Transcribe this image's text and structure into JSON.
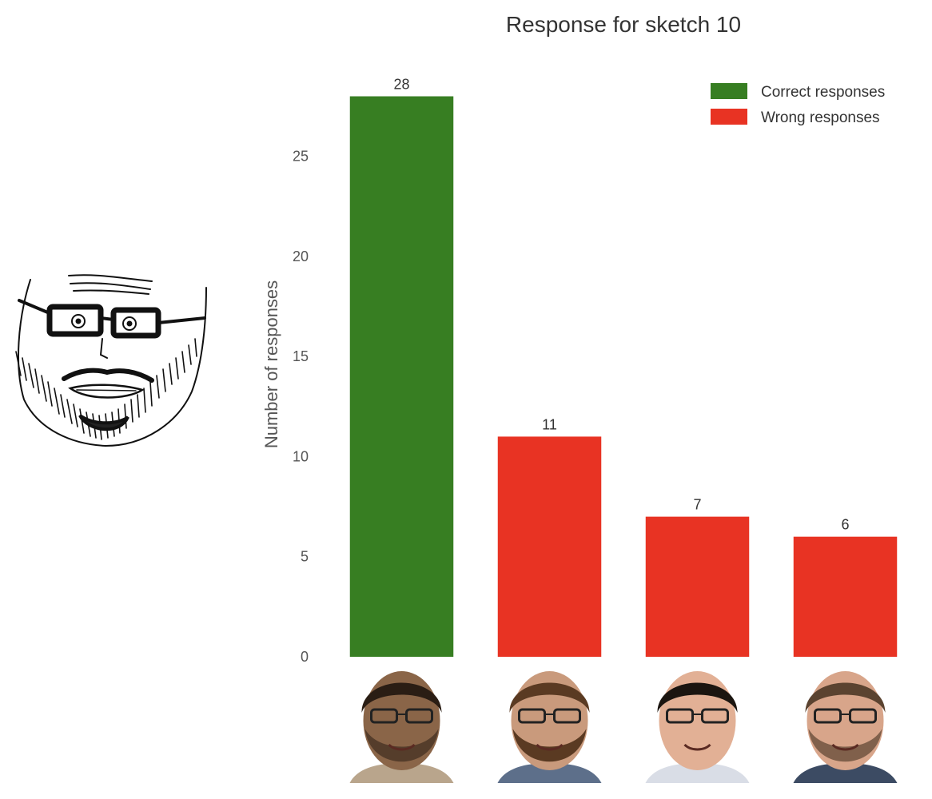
{
  "chart_data": {
    "type": "bar",
    "title": "Response for sketch 10",
    "xlabel": "",
    "ylabel": "Number of responses",
    "ylim": [
      0,
      28.5
    ],
    "yticks": [
      0,
      5,
      10,
      15,
      20,
      25
    ],
    "categories": [
      "",
      "",
      "",
      ""
    ],
    "values": [
      28,
      11,
      7,
      6
    ],
    "bar_series": [
      "Correct responses",
      "Wrong responses",
      "Wrong responses",
      "Wrong responses"
    ],
    "series": [
      {
        "name": "Correct responses",
        "color": "#377e22"
      },
      {
        "name": "Wrong responses",
        "color": "#e83323"
      }
    ],
    "legend_position": "top-right",
    "grid": false
  },
  "images": {
    "sketch": "hand-drawn sketch of a bearded face wearing glasses",
    "candidates": [
      "photo of a man with short dark hair, stubble and glasses",
      "photo of a man with a full beard and glasses",
      "photo of a young man with dark hair and glasses",
      "photo of a man with brown hair, beard and glasses"
    ]
  }
}
